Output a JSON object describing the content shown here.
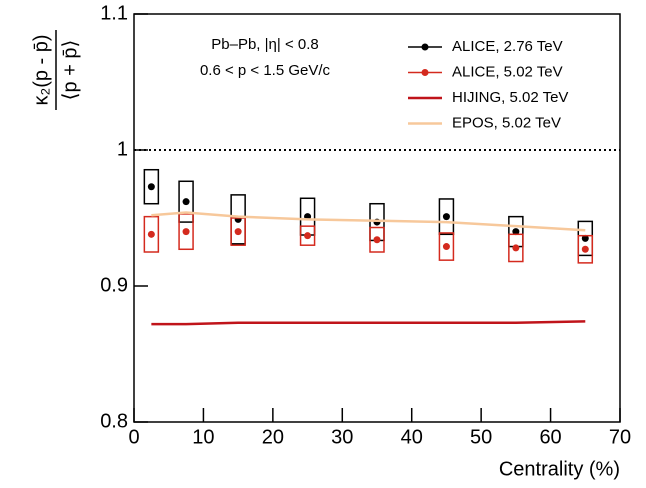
{
  "chart_data": {
    "type": "line",
    "y_label_numerator": "κ₂(p - p̄)",
    "y_label_denominator": "⟨p + p̄⟩",
    "x_label": "Centrality (%)",
    "annotations": [
      "Pb–Pb, |η| < 0.8",
      "0.6 < p < 1.5 GeV/c"
    ],
    "x": [
      2.5,
      7.5,
      15,
      25,
      35,
      45,
      55,
      65
    ],
    "series": [
      {
        "name": "ALICE, 2.76 TeV",
        "color": "#000000",
        "style": "points",
        "values": [
          0.973,
          0.962,
          0.949,
          0.951,
          0.947,
          0.951,
          0.94,
          0.935
        ],
        "errors": [
          0.0125,
          0.015,
          0.018,
          0.0135,
          0.0135,
          0.013,
          0.011,
          0.0125
        ]
      },
      {
        "name": "ALICE, 5.02 TeV",
        "color": "#d42a1e",
        "style": "points",
        "values": [
          0.938,
          0.94,
          0.94,
          0.937,
          0.934,
          0.929,
          0.928,
          0.927
        ],
        "errors": [
          0.013,
          0.013,
          0.01,
          0.007,
          0.009,
          0.01,
          0.01,
          0.01
        ]
      },
      {
        "name": "HIJING, 5.02 TeV",
        "color": "#c0141a",
        "style": "line",
        "values": [
          0.872,
          0.872,
          0.873,
          0.873,
          0.873,
          0.873,
          0.873,
          0.874
        ]
      },
      {
        "name": "EPOS, 5.02 TeV",
        "color": "#f7c89b",
        "style": "line",
        "values": [
          0.952,
          0.954,
          0.951,
          0.949,
          0.948,
          0.947,
          0.944,
          0.941
        ]
      }
    ],
    "reference_line": 1,
    "xlim": [
      0,
      70
    ],
    "xticks": [
      0,
      10,
      20,
      30,
      40,
      50,
      60,
      70
    ],
    "ylim": [
      0.8,
      1.1
    ],
    "yticks": [
      0.8,
      0.9,
      1,
      1.1
    ]
  }
}
